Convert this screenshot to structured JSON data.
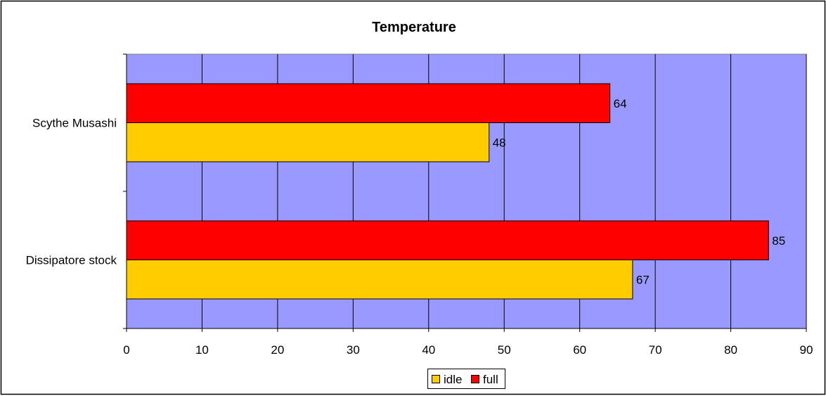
{
  "chart_data": {
    "type": "bar",
    "orientation": "horizontal",
    "title": "Temperature",
    "xlabel": "",
    "ylabel": "",
    "categories": [
      "Scythe Musashi",
      "Dissipatore stock"
    ],
    "series": [
      {
        "name": "idle",
        "values": [
          48,
          67
        ],
        "color": "#FFCC00"
      },
      {
        "name": "full",
        "values": [
          64,
          85
        ],
        "color": "#FF0000"
      }
    ],
    "xlim": [
      0,
      90
    ],
    "xticks": [
      "0",
      "10",
      "20",
      "30",
      "40",
      "50",
      "60",
      "70",
      "80",
      "90"
    ],
    "grid": true,
    "data_labels": true,
    "legend_position": "bottom",
    "plot_background": "#9999FF"
  }
}
